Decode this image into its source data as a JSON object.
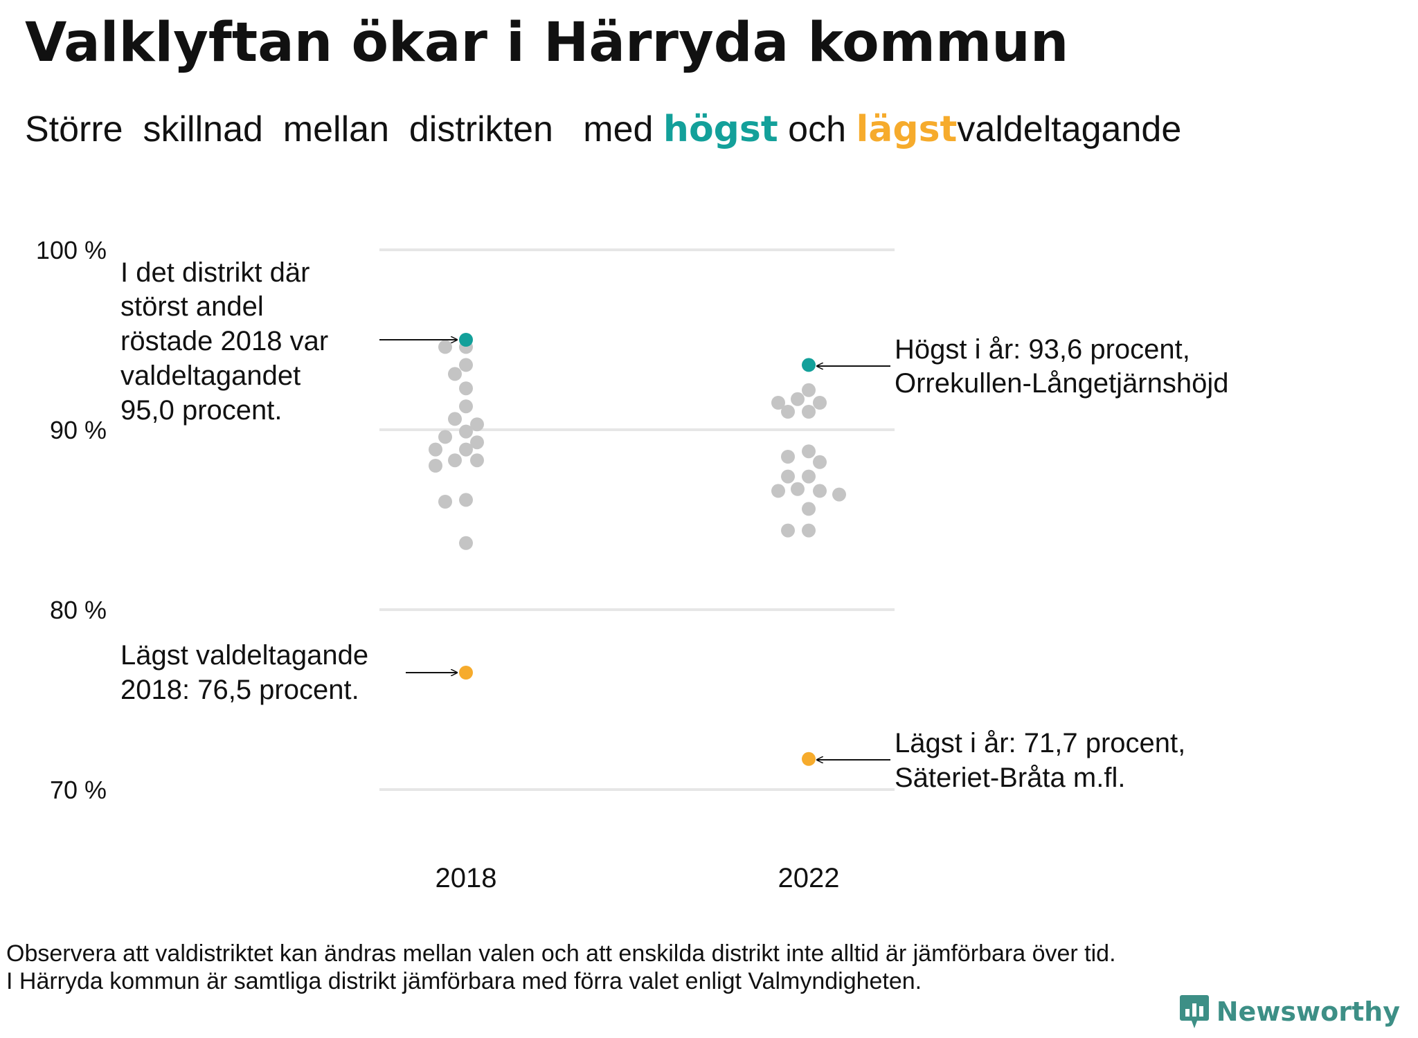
{
  "title": "Valklyftan ökar i Härryda kommun",
  "subtitle": {
    "part1": "Större  skillnad  mellan  distrikten   med",
    "highlight_high": "högst",
    "part2": "och",
    "highlight_low": "lägst",
    "part3": "valdeltagande"
  },
  "colors": {
    "high": "#13a09a",
    "low": "#f6ab2c",
    "other": "#c4c4c4",
    "grid": "#e6e6e6",
    "brand": "#3d8f86"
  },
  "annotations": {
    "high_2018": [
      "I det distrikt där",
      "störst andel",
      "röstade 2018 var",
      "valdeltagandet",
      "95,0 procent."
    ],
    "low_2018": [
      "Lägst valdeltagande",
      "2018: 76,5 procent."
    ],
    "high_2022": [
      "Högst i år: 93,6 procent,",
      "Orrekullen-Långetjärnshöjd"
    ],
    "low_2022": [
      "Lägst i år: 71,7 procent,",
      "Säteriet-Bråta m.fl."
    ]
  },
  "notes": {
    "line1": "Observera att valdistriktet kan ändras mellan valen och att enskilda distrikt inte alltid är jämförbara över tid.",
    "line2": "I Härryda kommun är samtliga distrikt jämförbara med förra valet enligt Valmyndigheten."
  },
  "brand": {
    "name": "Newsworthy",
    "icon": "bar-chart-chat-icon"
  },
  "chart_data": {
    "type": "scatter",
    "categories": [
      "2018",
      "2022"
    ],
    "ylim": [
      70,
      100
    ],
    "yticks": [
      {
        "value": 100,
        "label": "100 %"
      },
      {
        "value": 90,
        "label": "90 %"
      },
      {
        "value": 80,
        "label": "80 %"
      },
      {
        "value": 70,
        "label": "70 %"
      }
    ],
    "series": [
      {
        "category": "2018",
        "highest": 95.0,
        "lowest": 76.5,
        "others": [
          94.6,
          94.6,
          93.6,
          93.1,
          92.3,
          91.3,
          90.6,
          90.3,
          89.9,
          89.6,
          89.3,
          88.9,
          88.9,
          88.3,
          88.3,
          88.0,
          86.0,
          86.1,
          83.7
        ]
      },
      {
        "category": "2022",
        "highest": 93.6,
        "lowest": 71.7,
        "others": [
          92.2,
          91.7,
          91.5,
          91.5,
          91.0,
          91.0,
          88.8,
          88.5,
          88.2,
          87.4,
          87.4,
          86.7,
          86.6,
          86.6,
          86.4,
          85.6,
          84.4,
          84.4
        ]
      }
    ]
  }
}
